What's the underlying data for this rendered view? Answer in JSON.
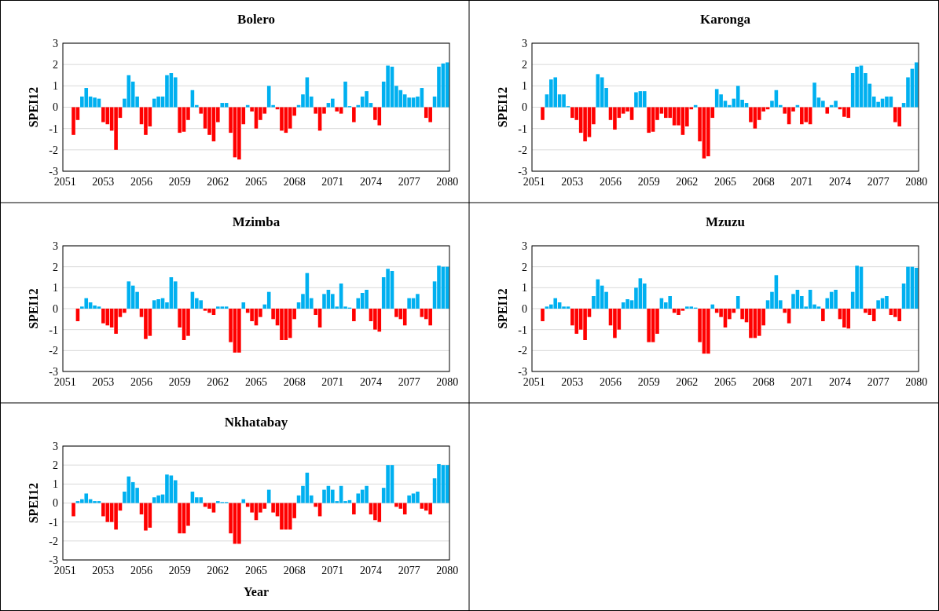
{
  "chart_data": [
    {
      "type": "bar",
      "title": "Bolero",
      "ylabel": "SPEI12",
      "ylim": [
        -3,
        3
      ],
      "yticks": [
        -3,
        -2,
        -1,
        0,
        1,
        2,
        3
      ],
      "grid": "y",
      "categories": [
        "2051",
        null,
        null,
        null,
        null,
        null,
        null,
        null,
        null,
        "2053",
        null,
        null,
        null,
        null,
        null,
        null,
        null,
        null,
        "2056",
        null,
        null,
        null,
        null,
        null,
        null,
        null,
        null,
        "2059",
        null,
        null,
        null,
        null,
        null,
        null,
        null,
        null,
        "2062",
        null,
        null,
        null,
        null,
        null,
        null,
        null,
        null,
        "2065",
        null,
        null,
        null,
        null,
        null,
        null,
        null,
        null,
        "2068",
        null,
        null,
        null,
        null,
        null,
        null,
        null,
        null,
        "2071",
        null,
        null,
        null,
        null,
        null,
        null,
        null,
        null,
        "2074",
        null,
        null,
        null,
        null,
        null,
        null,
        null,
        null,
        "2077",
        null,
        null,
        null,
        null,
        null,
        null,
        null,
        null,
        "2080"
      ],
      "series": [
        {
          "color": "#00b0f0",
          "values": [
            null,
            null,
            null,
            null,
            0.5,
            0.9,
            0.5,
            0.45,
            0.4,
            null,
            null,
            null,
            null,
            null,
            0.4,
            1.5,
            1.2,
            0.5,
            null,
            null,
            null,
            0.4,
            0.5,
            0.5,
            1.5,
            1.6,
            1.4,
            null,
            null,
            null,
            0.8,
            0.1,
            null,
            null,
            null,
            null,
            null,
            0.2,
            0.2,
            null,
            null,
            null,
            null,
            0.1,
            null,
            null,
            null,
            null,
            1.0,
            0.1,
            null,
            null,
            null,
            null,
            null,
            0.1,
            0.6,
            1.4,
            0.5,
            null,
            null,
            null,
            0.2,
            0.4,
            null,
            null,
            1.2,
            0.05,
            null,
            0.1,
            0.5,
            0.75,
            0.2,
            null,
            null,
            1.2,
            1.95,
            1.9,
            1.0,
            0.8,
            0.6,
            0.45,
            0.45,
            0.5,
            0.9,
            null,
            null,
            0.5,
            1.9,
            2.05,
            2.1
          ]
        },
        {
          "color": "#ff0000",
          "values": [
            null,
            null,
            -1.3,
            -0.6,
            null,
            null,
            null,
            null,
            null,
            -0.7,
            -0.8,
            -1.1,
            -2.0,
            -0.5,
            null,
            null,
            null,
            null,
            -0.8,
            -1.3,
            -0.9,
            null,
            null,
            null,
            null,
            null,
            null,
            -1.2,
            -1.15,
            -0.6,
            null,
            null,
            -0.3,
            -1.0,
            -1.3,
            -1.6,
            -0.7,
            null,
            null,
            -1.2,
            -2.35,
            -2.45,
            -0.8,
            null,
            -0.2,
            -1.0,
            -0.6,
            -0.3,
            null,
            null,
            -0.1,
            -1.1,
            -1.2,
            -1.0,
            -0.4,
            null,
            null,
            null,
            null,
            -0.3,
            -1.1,
            -0.3,
            null,
            null,
            -0.2,
            -0.3,
            null,
            null,
            -0.7,
            null,
            null,
            null,
            null,
            -0.6,
            -0.85,
            null,
            null,
            null,
            null,
            null,
            null,
            null,
            null,
            null,
            null,
            -0.5,
            -0.7,
            null,
            null,
            null,
            null
          ]
        }
      ]
    },
    {
      "type": "bar",
      "title": "Karonga",
      "ylabel": "SPEI12",
      "ylim": [
        -3,
        3
      ],
      "yticks": [
        -3,
        -2,
        -1,
        0,
        1,
        2,
        3
      ],
      "grid": "y",
      "categories": [
        "2051",
        null,
        null,
        null,
        null,
        null,
        null,
        null,
        null,
        "2053",
        null,
        null,
        null,
        null,
        null,
        null,
        null,
        null,
        "2056",
        null,
        null,
        null,
        null,
        null,
        null,
        null,
        null,
        "2059",
        null,
        null,
        null,
        null,
        null,
        null,
        null,
        null,
        "2062",
        null,
        null,
        null,
        null,
        null,
        null,
        null,
        null,
        "2065",
        null,
        null,
        null,
        null,
        null,
        null,
        null,
        null,
        "2068",
        null,
        null,
        null,
        null,
        null,
        null,
        null,
        null,
        "2071",
        null,
        null,
        null,
        null,
        null,
        null,
        null,
        null,
        "2074",
        null,
        null,
        null,
        null,
        null,
        null,
        null,
        null,
        "2077",
        null,
        null,
        null,
        null,
        null,
        null,
        null,
        null,
        "2080"
      ],
      "series": [
        {
          "color": "#00b0f0",
          "values": [
            null,
            null,
            null,
            0.6,
            1.3,
            1.4,
            0.6,
            0.6,
            0.05,
            null,
            null,
            null,
            null,
            null,
            null,
            1.55,
            1.4,
            0.9,
            null,
            null,
            null,
            null,
            null,
            null,
            0.7,
            0.75,
            0.75,
            null,
            null,
            null,
            null,
            null,
            null,
            null,
            null,
            null,
            null,
            null,
            0.1,
            null,
            null,
            null,
            null,
            0.85,
            0.6,
            0.3,
            0.1,
            0.4,
            1.0,
            0.35,
            0.2,
            null,
            null,
            null,
            null,
            null,
            0.3,
            0.8,
            0.1,
            null,
            null,
            null,
            0.1,
            null,
            null,
            null,
            1.15,
            0.45,
            0.3,
            null,
            0.1,
            0.3,
            null,
            null,
            null,
            1.6,
            1.9,
            1.95,
            1.6,
            1.1,
            0.5,
            0.25,
            0.4,
            0.5,
            0.5,
            null,
            null,
            0.2,
            1.4,
            1.8,
            2.1
          ]
        },
        {
          "color": "#ff0000",
          "values": [
            null,
            null,
            -0.6,
            null,
            null,
            null,
            null,
            null,
            null,
            -0.5,
            -0.6,
            -1.2,
            -1.6,
            -1.4,
            -0.8,
            null,
            null,
            null,
            -0.6,
            -1.05,
            -0.5,
            -0.3,
            -0.2,
            -0.6,
            null,
            null,
            null,
            -1.2,
            -1.15,
            -0.6,
            -0.3,
            -0.5,
            -0.5,
            -0.85,
            -0.85,
            -1.3,
            -0.9,
            -0.1,
            null,
            -1.6,
            -2.4,
            -2.3,
            -0.5,
            null,
            null,
            null,
            null,
            null,
            null,
            null,
            null,
            -0.7,
            -1.0,
            -0.6,
            -0.2,
            -0.1,
            null,
            null,
            null,
            -0.3,
            -0.8,
            -0.2,
            null,
            -0.8,
            -0.7,
            -0.8,
            null,
            null,
            null,
            -0.3,
            null,
            null,
            -0.1,
            -0.45,
            -0.5,
            null,
            null,
            null,
            null,
            null,
            null,
            null,
            null,
            null,
            null,
            -0.7,
            -0.9,
            null,
            null,
            null,
            null
          ]
        }
      ]
    },
    {
      "type": "bar",
      "title": "Mzimba",
      "ylabel": "SPEI12",
      "ylim": [
        -3,
        3
      ],
      "yticks": [
        -3,
        -2,
        -1,
        0,
        1,
        2,
        3
      ],
      "grid": "y",
      "categories": [
        "2051",
        null,
        null,
        null,
        null,
        null,
        null,
        null,
        null,
        "2053",
        null,
        null,
        null,
        null,
        null,
        null,
        null,
        null,
        "2056",
        null,
        null,
        null,
        null,
        null,
        null,
        null,
        null,
        "2059",
        null,
        null,
        null,
        null,
        null,
        null,
        null,
        null,
        "2062",
        null,
        null,
        null,
        null,
        null,
        null,
        null,
        null,
        "2065",
        null,
        null,
        null,
        null,
        null,
        null,
        null,
        null,
        "2068",
        null,
        null,
        null,
        null,
        null,
        null,
        null,
        null,
        "2071",
        null,
        null,
        null,
        null,
        null,
        null,
        null,
        null,
        "2074",
        null,
        null,
        null,
        null,
        null,
        null,
        null,
        null,
        "2077",
        null,
        null,
        null,
        null,
        null,
        null,
        null,
        null,
        "2080"
      ],
      "series": [
        {
          "color": "#00b0f0",
          "values": [
            null,
            null,
            null,
            null,
            0.1,
            0.5,
            0.3,
            0.15,
            0.1,
            null,
            null,
            null,
            null,
            null,
            null,
            1.3,
            1.1,
            0.8,
            null,
            null,
            null,
            0.4,
            0.45,
            0.5,
            0.3,
            1.5,
            1.3,
            null,
            null,
            null,
            0.8,
            0.5,
            0.4,
            null,
            null,
            null,
            0.1,
            0.1,
            0.1,
            null,
            null,
            null,
            0.3,
            null,
            null,
            null,
            null,
            0.2,
            0.8,
            null,
            null,
            null,
            null,
            null,
            null,
            0.3,
            0.7,
            1.7,
            0.5,
            null,
            null,
            0.7,
            0.9,
            0.7,
            0.1,
            1.2,
            0.1,
            0.05,
            null,
            0.5,
            0.75,
            0.9,
            null,
            null,
            null,
            1.5,
            1.9,
            1.8,
            null,
            null,
            null,
            0.5,
            0.5,
            0.7,
            null,
            null,
            null,
            1.3,
            2.05,
            2.0,
            2.0
          ]
        },
        {
          "color": "#ff0000",
          "values": [
            null,
            null,
            null,
            -0.6,
            null,
            null,
            null,
            null,
            null,
            -0.7,
            -0.8,
            -0.9,
            -1.2,
            -0.4,
            -0.2,
            null,
            null,
            null,
            -0.4,
            -1.45,
            -1.3,
            null,
            null,
            null,
            null,
            null,
            null,
            -0.9,
            -1.5,
            -1.3,
            null,
            null,
            null,
            -0.1,
            -0.2,
            -0.3,
            null,
            null,
            null,
            -1.6,
            -2.1,
            -2.1,
            null,
            -0.2,
            -0.6,
            -0.8,
            -0.4,
            null,
            null,
            -0.5,
            -0.8,
            -1.5,
            -1.5,
            -1.4,
            -0.5,
            null,
            null,
            null,
            null,
            -0.3,
            -0.9,
            null,
            null,
            null,
            null,
            null,
            null,
            null,
            -0.6,
            null,
            null,
            null,
            -0.6,
            -1.0,
            -1.1,
            null,
            null,
            null,
            -0.4,
            -0.5,
            -0.8,
            null,
            null,
            null,
            -0.4,
            -0.5,
            -0.8,
            null,
            null,
            null,
            null
          ]
        }
      ]
    },
    {
      "type": "bar",
      "title": "Mzuzu",
      "ylabel": "SPEI12",
      "ylim": [
        -3,
        3
      ],
      "yticks": [
        -3,
        -2,
        -1,
        0,
        1,
        2,
        3
      ],
      "grid": "y",
      "categories": [
        "2051",
        null,
        null,
        null,
        null,
        null,
        null,
        null,
        null,
        "2053",
        null,
        null,
        null,
        null,
        null,
        null,
        null,
        null,
        "2056",
        null,
        null,
        null,
        null,
        null,
        null,
        null,
        null,
        "2059",
        null,
        null,
        null,
        null,
        null,
        null,
        null,
        null,
        "2062",
        null,
        null,
        null,
        null,
        null,
        null,
        null,
        null,
        "2065",
        null,
        null,
        null,
        null,
        null,
        null,
        null,
        null,
        "2068",
        null,
        null,
        null,
        null,
        null,
        null,
        null,
        null,
        "2071",
        null,
        null,
        null,
        null,
        null,
        null,
        null,
        null,
        "2074",
        null,
        null,
        null,
        null,
        null,
        null,
        null,
        null,
        "2077",
        null,
        null,
        null,
        null,
        null,
        null,
        null,
        null,
        "2080"
      ],
      "series": [
        {
          "color": "#00b0f0",
          "values": [
            null,
            null,
            null,
            0.1,
            0.2,
            0.5,
            0.3,
            0.1,
            0.1,
            null,
            null,
            null,
            null,
            null,
            0.6,
            1.4,
            1.1,
            0.8,
            null,
            null,
            null,
            0.3,
            0.45,
            0.4,
            1.0,
            1.45,
            1.2,
            null,
            null,
            null,
            0.5,
            0.3,
            0.6,
            null,
            null,
            null,
            0.1,
            0.1,
            0.05,
            null,
            null,
            null,
            0.2,
            null,
            null,
            null,
            null,
            null,
            0.6,
            null,
            null,
            null,
            null,
            null,
            null,
            0.4,
            0.8,
            1.6,
            0.4,
            null,
            null,
            0.7,
            0.9,
            0.6,
            0.1,
            0.9,
            0.2,
            0.1,
            null,
            0.5,
            0.8,
            0.9,
            null,
            null,
            null,
            0.8,
            2.05,
            2.0,
            null,
            null,
            null,
            0.4,
            0.5,
            0.6,
            null,
            null,
            null,
            1.2,
            2.0,
            2.0,
            1.95
          ]
        },
        {
          "color": "#ff0000",
          "values": [
            null,
            null,
            -0.6,
            null,
            null,
            null,
            null,
            null,
            null,
            -0.8,
            -1.2,
            -1.0,
            -1.5,
            -0.4,
            null,
            null,
            null,
            null,
            -0.8,
            -1.4,
            -1.0,
            null,
            null,
            null,
            null,
            null,
            null,
            -1.6,
            -1.6,
            -1.2,
            null,
            null,
            null,
            -0.2,
            -0.3,
            -0.1,
            null,
            null,
            null,
            -1.6,
            -2.15,
            -2.15,
            null,
            -0.2,
            -0.4,
            -0.9,
            -0.5,
            -0.2,
            null,
            -0.5,
            -0.65,
            -1.4,
            -1.4,
            -1.3,
            -0.8,
            null,
            null,
            null,
            null,
            -0.2,
            -0.7,
            null,
            null,
            null,
            null,
            null,
            null,
            null,
            -0.6,
            null,
            null,
            null,
            -0.5,
            -0.9,
            -0.95,
            null,
            null,
            null,
            -0.2,
            -0.3,
            -0.6,
            null,
            null,
            null,
            -0.3,
            -0.4,
            -0.6,
            null,
            null,
            null,
            null
          ]
        }
      ]
    },
    {
      "type": "bar",
      "title": "Nkhatabay",
      "ylabel": "SPEI12",
      "xlabel": "Year",
      "ylim": [
        -3,
        3
      ],
      "yticks": [
        -3,
        -2,
        -1,
        0,
        1,
        2,
        3
      ],
      "grid": "y",
      "categories": [
        "2051",
        null,
        null,
        null,
        null,
        null,
        null,
        null,
        null,
        "2053",
        null,
        null,
        null,
        null,
        null,
        null,
        null,
        null,
        "2056",
        null,
        null,
        null,
        null,
        null,
        null,
        null,
        null,
        "2059",
        null,
        null,
        null,
        null,
        null,
        null,
        null,
        null,
        "2062",
        null,
        null,
        null,
        null,
        null,
        null,
        null,
        null,
        "2065",
        null,
        null,
        null,
        null,
        null,
        null,
        null,
        null,
        "2068",
        null,
        null,
        null,
        null,
        null,
        null,
        null,
        null,
        "2071",
        null,
        null,
        null,
        null,
        null,
        null,
        null,
        null,
        "2074",
        null,
        null,
        null,
        null,
        null,
        null,
        null,
        null,
        "2077",
        null,
        null,
        null,
        null,
        null,
        null,
        null,
        null,
        "2080"
      ],
      "series": [
        {
          "color": "#00b0f0",
          "values": [
            null,
            null,
            null,
            0.1,
            0.2,
            0.5,
            0.2,
            0.1,
            0.1,
            null,
            null,
            null,
            null,
            null,
            0.6,
            1.4,
            1.1,
            0.8,
            null,
            null,
            null,
            0.3,
            0.4,
            0.45,
            1.5,
            1.45,
            1.2,
            null,
            null,
            null,
            0.6,
            0.3,
            0.3,
            null,
            null,
            null,
            0.1,
            0.05,
            0.05,
            null,
            null,
            null,
            0.2,
            null,
            null,
            null,
            null,
            null,
            0.7,
            null,
            null,
            null,
            null,
            null,
            null,
            0.4,
            0.9,
            1.6,
            0.4,
            null,
            null,
            0.7,
            0.9,
            0.7,
            0.1,
            0.9,
            0.1,
            0.15,
            null,
            0.5,
            0.7,
            0.9,
            null,
            null,
            null,
            0.8,
            2.0,
            2.0,
            null,
            null,
            null,
            0.4,
            0.5,
            0.6,
            null,
            null,
            null,
            1.3,
            2.05,
            2.0,
            2.0
          ]
        },
        {
          "color": "#ff0000",
          "values": [
            null,
            null,
            -0.7,
            null,
            null,
            null,
            null,
            null,
            null,
            -0.7,
            -1.0,
            -1.0,
            -1.4,
            -0.4,
            null,
            null,
            null,
            null,
            -0.6,
            -1.45,
            -1.3,
            null,
            null,
            null,
            null,
            null,
            null,
            -1.6,
            -1.6,
            -1.2,
            null,
            null,
            null,
            -0.2,
            -0.3,
            -0.5,
            null,
            null,
            null,
            -1.6,
            -2.15,
            -2.15,
            null,
            -0.2,
            -0.5,
            -0.9,
            -0.5,
            -0.3,
            null,
            -0.5,
            -0.7,
            -1.4,
            -1.4,
            -1.4,
            -0.8,
            null,
            null,
            null,
            null,
            -0.2,
            -0.7,
            null,
            null,
            null,
            null,
            null,
            null,
            null,
            -0.6,
            null,
            null,
            null,
            -0.6,
            -0.9,
            -1.0,
            null,
            null,
            null,
            -0.2,
            -0.3,
            -0.6,
            null,
            null,
            null,
            -0.3,
            -0.4,
            -0.6,
            null,
            null,
            null,
            null
          ]
        }
      ]
    }
  ]
}
